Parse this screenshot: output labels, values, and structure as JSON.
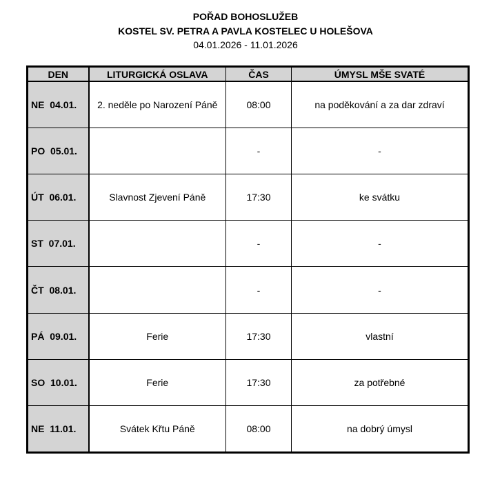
{
  "header": {
    "title": "POŘAD BOHOSLUŽEB",
    "church": "KOSTEL SV. PETRA A PAVLA KOSTELEC U HOLEŠOVA",
    "date_range": "04.01.2026 - 11.01.2026"
  },
  "table": {
    "columns": [
      "DEN",
      "LITURGICKÁ OSLAVA",
      "ČAS",
      "ÚMYSL MŠE SVATÉ"
    ],
    "rows": [
      {
        "day": "NE  04.01.",
        "celebration": "2. neděle po Narození Páně",
        "time": "08:00",
        "intention": "na poděkování a za dar zdraví"
      },
      {
        "day": "PO  05.01.",
        "celebration": "",
        "time": "-",
        "intention": "-"
      },
      {
        "day": "ÚT  06.01.",
        "celebration": "Slavnost Zjevení Páně",
        "time": "17:30",
        "intention": "ke svátku"
      },
      {
        "day": "ST  07.01.",
        "celebration": "",
        "time": "-",
        "intention": "-"
      },
      {
        "day": "ČT  08.01.",
        "celebration": "",
        "time": "-",
        "intention": "-"
      },
      {
        "day": "PÁ  09.01.",
        "celebration": "Ferie",
        "time": "17:30",
        "intention": "vlastní"
      },
      {
        "day": "SO  10.01.",
        "celebration": "Ferie",
        "time": "17:30",
        "intention": "za potřebné"
      },
      {
        "day": "NE  11.01.",
        "celebration": "Svátek Křtu Páně",
        "time": "08:00",
        "intention": "na dobrý úmysl"
      }
    ]
  },
  "colors": {
    "header_bg": "#d4d4d4"
  }
}
